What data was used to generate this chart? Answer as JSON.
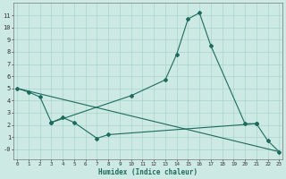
{
  "xlabel": "Humidex (Indice chaleur)",
  "curve1_x": [
    0,
    1,
    2,
    3,
    10,
    13,
    14,
    15,
    16,
    17,
    20,
    21
  ],
  "curve1_y": [
    5.0,
    4.7,
    4.3,
    2.2,
    4.4,
    5.7,
    7.8,
    10.7,
    11.2,
    8.5,
    2.1,
    2.1
  ],
  "curve2_x": [
    3,
    4,
    5,
    7,
    8,
    21,
    22,
    23
  ],
  "curve2_y": [
    2.2,
    2.6,
    2.2,
    0.9,
    1.2,
    2.1,
    0.7,
    -0.2
  ],
  "curve3_x": [
    0,
    23
  ],
  "curve3_y": [
    5.0,
    -0.2
  ],
  "bg_color": "#cce9e4",
  "line_color": "#1e6b5e",
  "grid_color": "#aad4cd",
  "ylim": [
    -0.8,
    12
  ],
  "xlim": [
    -0.3,
    23.3
  ],
  "yticks": [
    0,
    1,
    2,
    3,
    4,
    5,
    6,
    7,
    8,
    9,
    10,
    11
  ],
  "ytick_labels": [
    "-0",
    "1",
    "2",
    "3",
    "4",
    "5",
    "6",
    "7",
    "8",
    "9",
    "10",
    "11"
  ],
  "xticks": [
    0,
    1,
    2,
    3,
    4,
    5,
    6,
    7,
    8,
    9,
    10,
    11,
    12,
    13,
    14,
    15,
    16,
    17,
    18,
    19,
    20,
    21,
    22,
    23
  ],
  "xtick_labels": [
    "0",
    "1",
    "2",
    "3",
    "4",
    "5",
    "6",
    "7",
    "8",
    "9",
    "10",
    "11",
    "12",
    "13",
    "14",
    "15",
    "16",
    "17",
    "18",
    "19",
    "20",
    "21",
    "22",
    "23"
  ]
}
